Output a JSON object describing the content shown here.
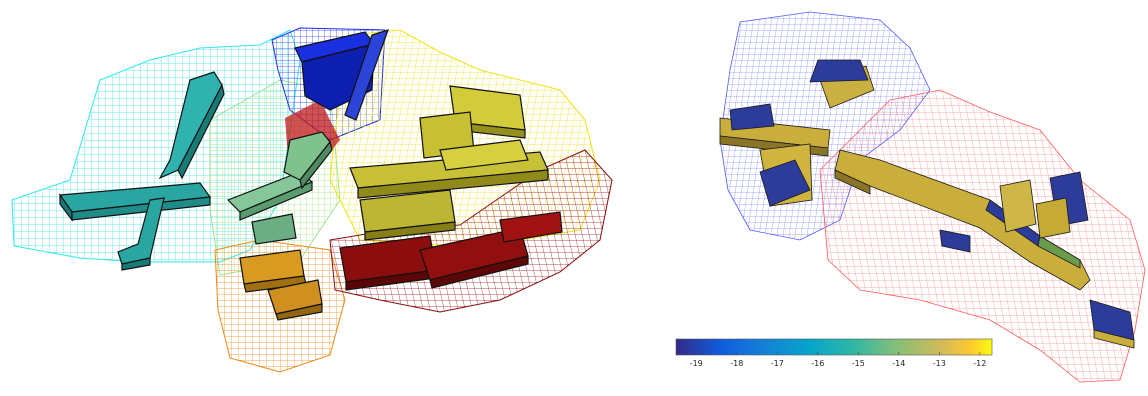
{
  "left_figure": {
    "palette": {
      "cyan": "#33e6ee",
      "teal": "#2aa6a2",
      "blue": "#1a2ee0",
      "green": "#6fd66b",
      "yellow": "#f5ee1a",
      "olive": "#bdb43a",
      "orange": "#ec8a1a",
      "darkorange": "#c98a24",
      "darkred": "#8b0d0d",
      "red": "#c01818"
    }
  },
  "right_figure": {
    "palette": {
      "blue_wire": "#4f5cff",
      "red_wire": "#ff5a5a",
      "block_gold": "#c9ae3c",
      "block_blue": "#2d3c9a",
      "block_green": "#6b9c4c"
    }
  },
  "colorbar": {
    "colormap": "parula",
    "min": -19.5,
    "max": -11.7,
    "ticks": [
      "-19",
      "-18",
      "-17",
      "-16",
      "-15",
      "-14",
      "-13",
      "-12"
    ]
  }
}
